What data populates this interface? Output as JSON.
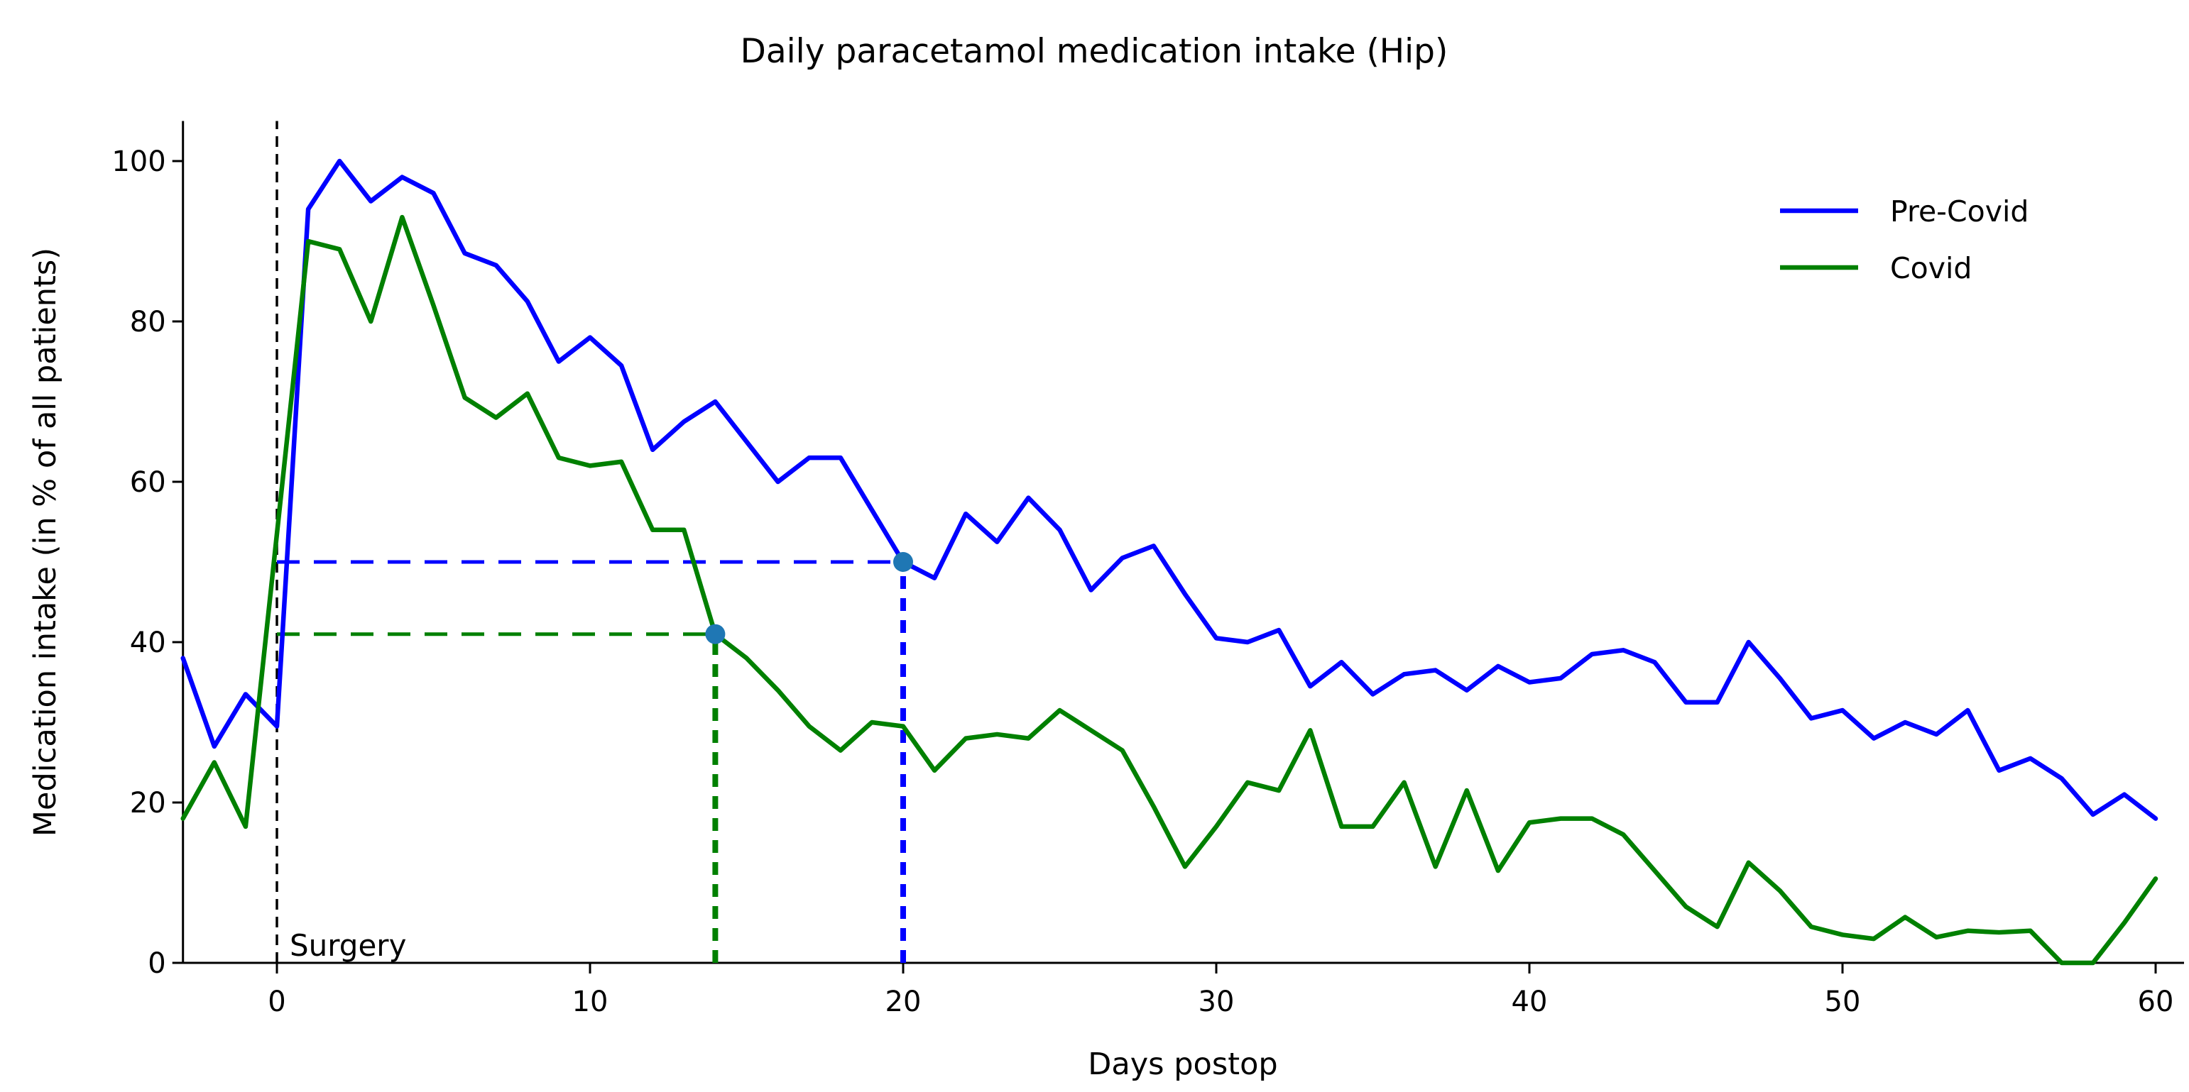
{
  "chart_data": {
    "type": "line",
    "title": "Daily paracetamol medication intake (Hip)",
    "xlabel": "Days postop",
    "ylabel": "Medication intake (in % of all patients)",
    "xlim": [
      -3,
      60.5
    ],
    "ylim": [
      0,
      105
    ],
    "x_ticks": [
      0,
      10,
      20,
      30,
      40,
      50,
      60
    ],
    "y_ticks": [
      0,
      20,
      40,
      60,
      80,
      100
    ],
    "grid": false,
    "legend_position": "upper right",
    "axis_color": "#000000",
    "x": [
      -3,
      -2,
      -1,
      0,
      1,
      2,
      3,
      4,
      5,
      6,
      7,
      8,
      9,
      10,
      11,
      12,
      13,
      14,
      15,
      16,
      17,
      18,
      19,
      20,
      21,
      22,
      23,
      24,
      25,
      26,
      27,
      28,
      29,
      30,
      31,
      32,
      33,
      34,
      35,
      36,
      37,
      38,
      39,
      40,
      41,
      42,
      43,
      44,
      45,
      46,
      47,
      48,
      49,
      50,
      51,
      52,
      53,
      54,
      55,
      56,
      57,
      58,
      59,
      60
    ],
    "series": [
      {
        "name": "Pre-Covid",
        "color": "#0000ff",
        "values": [
          38,
          27,
          33.5,
          29.5,
          94,
          100,
          95,
          98,
          96,
          88.5,
          87,
          82.5,
          75,
          78,
          74.5,
          64,
          67.5,
          70,
          65,
          60,
          63,
          63,
          56.5,
          50,
          48,
          56,
          52.5,
          58,
          54,
          46.5,
          50.5,
          52,
          46,
          40.5,
          40,
          41.5,
          34.5,
          37.5,
          33.5,
          36,
          36.5,
          34,
          37,
          35,
          35.5,
          38.5,
          39,
          37.5,
          32.5,
          32.5,
          40,
          35.5,
          30.5,
          31.5,
          28,
          30,
          28.5,
          31.5,
          24,
          25.5,
          23,
          18.5,
          21,
          18
        ]
      },
      {
        "name": "Covid",
        "color": "#008000",
        "values": [
          18,
          25,
          17,
          53.5,
          90,
          89,
          80,
          93,
          82,
          70.5,
          68,
          71,
          63,
          62,
          62.5,
          54,
          54,
          41,
          38,
          34,
          29.5,
          26.5,
          30,
          29.5,
          24,
          28,
          28.5,
          28,
          31.5,
          29,
          26.5,
          19.5,
          12,
          17,
          22.5,
          21.5,
          29,
          17,
          17,
          22.5,
          12,
          21.5,
          11.5,
          17.5,
          18,
          18,
          16,
          11.5,
          7,
          4.5,
          12.5,
          9,
          4.5,
          3.5,
          3,
          5.7,
          3.2,
          4,
          3.8,
          4,
          0,
          0,
          5,
          10.5
        ]
      }
    ],
    "annotations": {
      "surgery_line": {
        "x": 0,
        "label": "Surgery",
        "color": "#000000",
        "style": "dashed"
      },
      "reference_markers": [
        {
          "x": 20,
          "y": 50,
          "series": "Pre-Covid",
          "line_color": "#0000ff",
          "dot_color": "#1f77b4"
        },
        {
          "x": 14,
          "y": 41,
          "series": "Covid",
          "line_color": "#008000",
          "dot_color": "#1f77b4"
        }
      ]
    }
  }
}
